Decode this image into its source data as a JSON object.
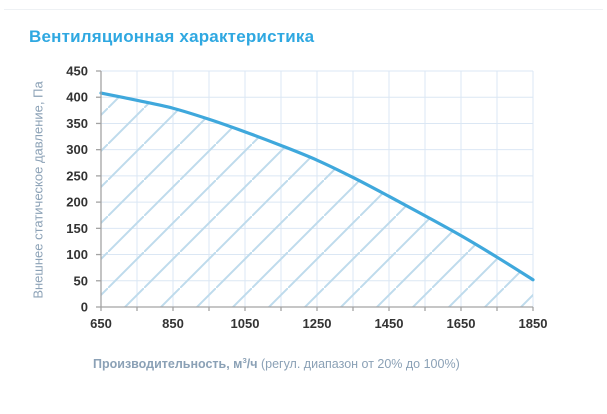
{
  "title": "Вентиляционная характеристика",
  "colors": {
    "title": "#2fa8e1",
    "curve": "#3fa8dc",
    "grid": "#dbe7f4",
    "hatch": "#bedbec",
    "axis": "#a3a3a3",
    "tick_label": "#333333",
    "axis_title": "#8ba1b6"
  },
  "y_axis": {
    "title": "Внешнее статическое давление, Па"
  },
  "x_axis": {
    "title_main": "Производительность, м",
    "title_sup": "3",
    "title_unit": "/ч",
    "title_note": " (регул. диапазон от 20% до 100%)"
  },
  "chart_data": {
    "type": "area",
    "title": "Вентиляционная характеристика",
    "xlabel": "Производительность, м3/ч (регул. диапазон от 20% до 100%)",
    "ylabel": "Внешнее статическое давление, Па",
    "x": [
      650,
      750,
      850,
      950,
      1050,
      1150,
      1250,
      1350,
      1450,
      1550,
      1650,
      1750,
      1850
    ],
    "series": [
      {
        "name": "Внешнее статическое давление, Па",
        "values": [
          408,
          394,
          379,
          358,
          334,
          308,
          280,
          247,
          211,
          174,
          136,
          95,
          52
        ]
      }
    ],
    "xlim": [
      650,
      1850
    ],
    "ylim": [
      0,
      450
    ],
    "x_tick_labels": [
      650,
      850,
      1050,
      1250,
      1450,
      1650,
      1850
    ],
    "x_grid_step": 100,
    "y_ticks": [
      0,
      50,
      100,
      150,
      200,
      250,
      300,
      350,
      400,
      450
    ],
    "grid": true,
    "legend": false,
    "area_style": "diagonal-hatch-under-curve"
  }
}
